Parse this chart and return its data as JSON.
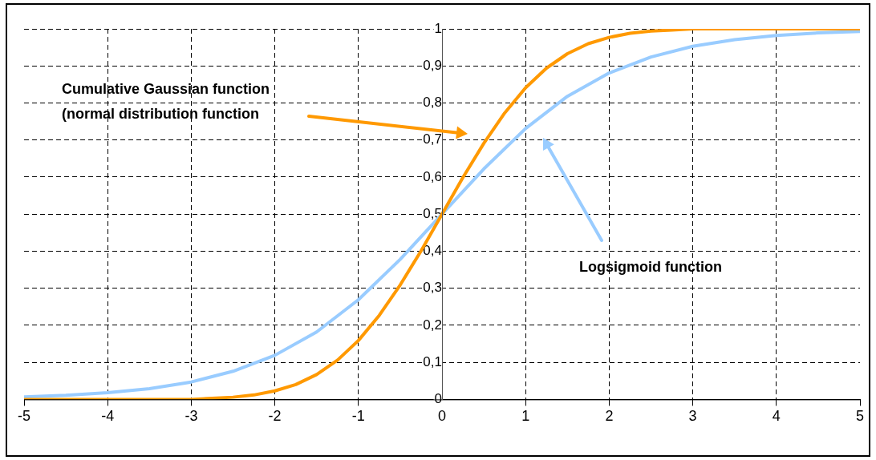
{
  "chart_data": {
    "type": "line",
    "xlim": [
      -5,
      5
    ],
    "xticks": [
      -5,
      -4,
      -3,
      -2,
      -1,
      0,
      1,
      2,
      3,
      4,
      5
    ],
    "ylim": [
      0,
      1
    ],
    "yticks": [
      0,
      {
        "value": 0.1,
        "label": "0,1"
      },
      {
        "value": 0.2,
        "label": "0,2"
      },
      {
        "value": 0.3,
        "label": "0,3"
      },
      {
        "value": 0.4,
        "label": "0,4"
      },
      {
        "value": 0.5,
        "label": "0,5"
      },
      {
        "value": 0.6,
        "label": "0,6"
      },
      {
        "value": 0.7,
        "label": "0,7"
      },
      {
        "value": 0.8,
        "label": "0,8"
      },
      {
        "value": 0.9,
        "label": "0,9"
      },
      1
    ],
    "grid": true,
    "legend": false,
    "marker": "none",
    "line_style": "solid",
    "series": [
      {
        "color": "#ff9900",
        "x": [
          -5,
          -4,
          -3,
          -2.75,
          -2.5,
          -2.25,
          -2,
          -1.75,
          -1.5,
          -1.25,
          -1,
          -0.75,
          -0.5,
          -0.25,
          0,
          0.25,
          0.5,
          0.75,
          1,
          1.25,
          1.5,
          1.75,
          2,
          2.25,
          2.5,
          2.75,
          3,
          4,
          5
        ],
        "values": [
          0,
          0,
          0,
          0.003,
          0.006,
          0.012,
          0.023,
          0.04,
          0.067,
          0.106,
          0.159,
          0.227,
          0.309,
          0.401,
          0.5,
          0.599,
          0.691,
          0.773,
          0.841,
          0.894,
          0.933,
          0.96,
          0.977,
          0.988,
          0.994,
          0.997,
          1,
          1,
          1
        ]
      },
      {
        "color": "#99ccff",
        "x": [
          -5,
          -4.5,
          -4,
          -3.5,
          -3,
          -2.5,
          -2,
          -1.5,
          -1,
          -0.5,
          0,
          0.5,
          1,
          1.5,
          2,
          2.5,
          3,
          3.5,
          4,
          4.5,
          5
        ],
        "values": [
          0.007,
          0.011,
          0.018,
          0.029,
          0.047,
          0.076,
          0.119,
          0.182,
          0.269,
          0.378,
          0.5,
          0.622,
          0.731,
          0.818,
          0.881,
          0.924,
          0.953,
          0.971,
          0.982,
          0.989,
          0.993
        ]
      }
    ],
    "annotations": [
      "Cumulative Gaussian function (normal distribution function",
      "Logsigmoid function"
    ]
  }
}
